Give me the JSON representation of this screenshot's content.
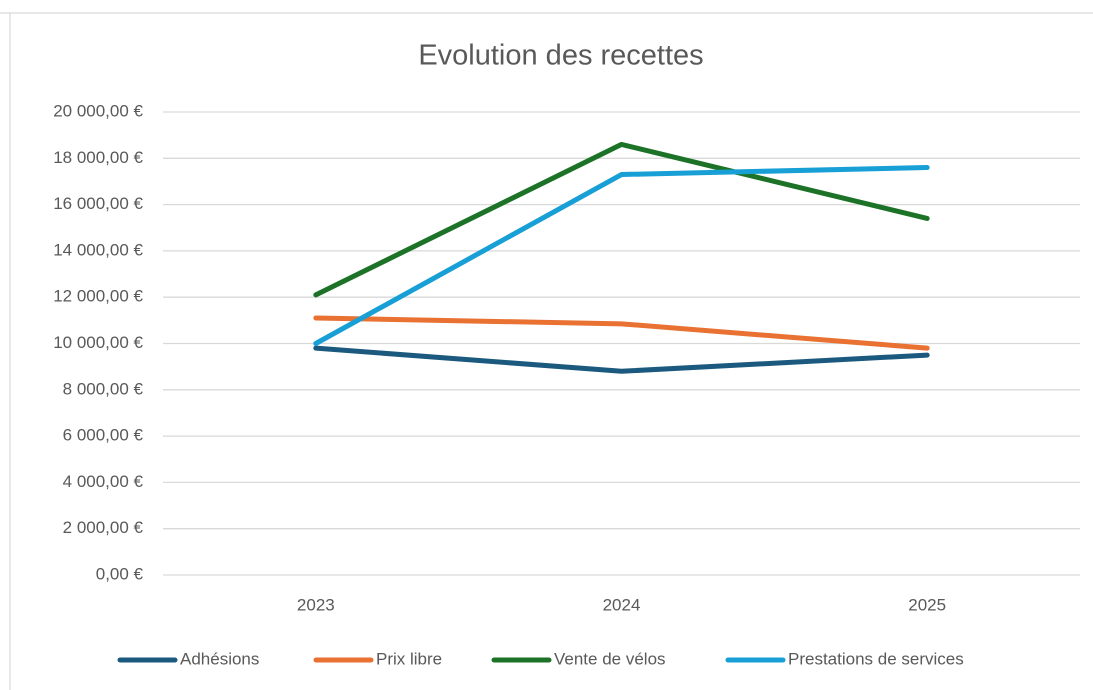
{
  "chart_data": {
    "type": "line",
    "title": "Evolution des recettes",
    "categories": [
      "2023",
      "2024",
      "2025"
    ],
    "series": [
      {
        "name": "Adhésions",
        "color": "#1b5a7e",
        "values": [
          9800,
          8800,
          9500
        ]
      },
      {
        "name": "Prix libre",
        "color": "#e97132",
        "values": [
          11100,
          10850,
          9800
        ]
      },
      {
        "name": "Vente de vélos",
        "color": "#1c7226",
        "values": [
          12100,
          18600,
          15400
        ]
      },
      {
        "name": "Prestations de services",
        "color": "#179fd6",
        "values": [
          10000,
          17300,
          17600
        ]
      }
    ],
    "ylim": [
      0,
      20000
    ],
    "yticks": [
      {
        "value": 0,
        "label": "0,00 €"
      },
      {
        "value": 2000,
        "label": "2 000,00 €"
      },
      {
        "value": 4000,
        "label": "4 000,00 €"
      },
      {
        "value": 6000,
        "label": "6 000,00 €"
      },
      {
        "value": 8000,
        "label": "8 000,00 €"
      },
      {
        "value": 10000,
        "label": "10 000,00 €"
      },
      {
        "value": 12000,
        "label": "12 000,00 €"
      },
      {
        "value": 14000,
        "label": "14 000,00 €"
      },
      {
        "value": 16000,
        "label": "16 000,00 €"
      },
      {
        "value": 18000,
        "label": "18 000,00 €"
      },
      {
        "value": 20000,
        "label": "20 000,00 €"
      }
    ],
    "grid": true,
    "legend": "bottom"
  }
}
